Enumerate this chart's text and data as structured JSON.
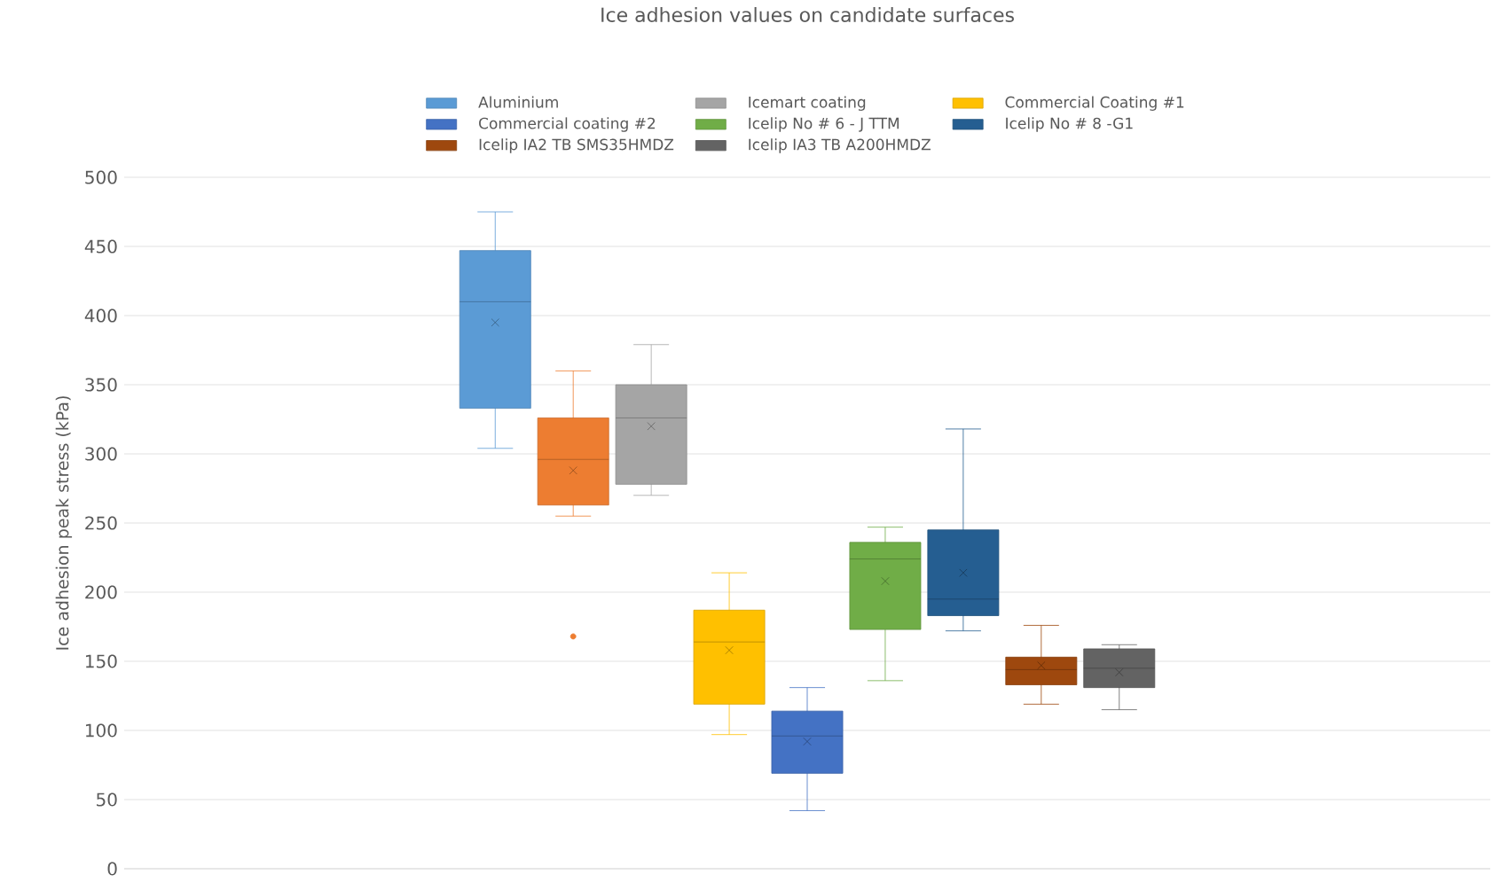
{
  "chart_data": {
    "type": "box",
    "title": "Ice adhesion values on candidate surfaces",
    "ylabel": "Ice adhesion peak stress (kPa)",
    "categories": [
      null
    ],
    "series": [
      {
        "name": "Aluminium",
        "color": "#5b9bd5",
        "boxes": [
          {
            "low": 304,
            "q1": 333,
            "median": 410,
            "q3": 447,
            "high": 475,
            "mean": 395
          }
        ]
      },
      {
        "color": "#ed7d31",
        "boxes": [
          {
            "low": 255,
            "q1": 263,
            "median": 296,
            "q3": 326,
            "high": 360,
            "mean": 288,
            "outliers": [
              168
            ]
          }
        ]
      },
      {
        "name": "Icemart coating",
        "color": "#a5a5a5",
        "boxes": [
          {
            "low": 270,
            "q1": 278,
            "median": 326,
            "q3": 350,
            "high": 379,
            "mean": 320
          }
        ]
      },
      {
        "name": "Commercial Coating #1",
        "color": "#ffc000",
        "boxes": [
          {
            "low": 97,
            "q1": 119,
            "median": 164,
            "q3": 187,
            "high": 214,
            "mean": 158
          }
        ]
      },
      {
        "name": "Commercial coating #2",
        "color": "#4472c4",
        "boxes": [
          {
            "low": 42,
            "q1": 69,
            "median": 96,
            "q3": 114,
            "high": 131,
            "mean": 92
          }
        ]
      },
      {
        "name": "Icelip No # 6 - J TTM",
        "color": "#70ad47",
        "boxes": [
          {
            "low": 136,
            "q1": 173,
            "median": 224,
            "q3": 236,
            "high": 247,
            "mean": 208
          }
        ]
      },
      {
        "name": "Icelip No # 8 -G1",
        "color": "#255e91",
        "boxes": [
          {
            "low": 172,
            "q1": 183,
            "median": 195,
            "q3": 245,
            "high": 318,
            "mean": 214
          }
        ]
      },
      {
        "name": "Icelip IA2 TB SMS35HMDZ",
        "color": "#9e480e",
        "boxes": [
          {
            "low": 119,
            "q1": 133,
            "median": 144,
            "q3": 153,
            "high": 176,
            "mean": 147
          }
        ]
      },
      {
        "name": "Icelip IA3 TB A200HMDZ",
        "color": "#636363",
        "boxes": [
          {
            "low": 115,
            "q1": 131,
            "median": 145,
            "q3": 159,
            "high": 162,
            "mean": 142
          }
        ]
      }
    ],
    "ylim": [
      0,
      500
    ],
    "yticks": [
      0,
      50,
      100,
      150,
      200,
      250,
      300,
      350,
      400,
      450,
      500
    ],
    "grid": "y",
    "legend": "top",
    "marker": "cross"
  }
}
